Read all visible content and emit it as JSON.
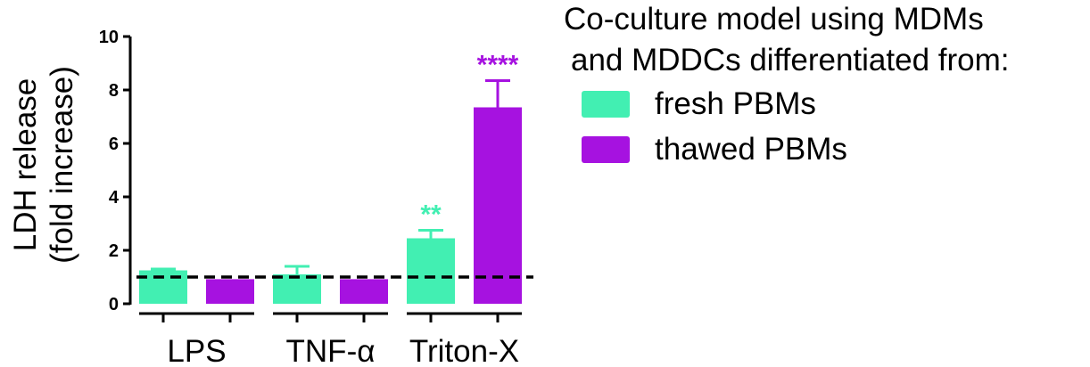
{
  "chart_data": {
    "type": "bar",
    "ylabel_lines": [
      "LDH release",
      "(fold increase)"
    ],
    "categories": [
      "LPS",
      "TNF-α",
      "Triton-X"
    ],
    "ylim": [
      0,
      10
    ],
    "yticks": [
      0,
      2,
      4,
      6,
      8,
      10
    ],
    "reference_line": 1,
    "series": [
      {
        "name": "fresh PBMs",
        "color": "#42EFB2",
        "values": [
          1.25,
          1.1,
          2.45
        ],
        "errors": [
          0.05,
          0.3,
          0.3
        ],
        "annotations": [
          "",
          "",
          "**"
        ]
      },
      {
        "name": "thawed PBMs",
        "color": "#A612E0",
        "values": [
          0.92,
          0.92,
          7.35
        ],
        "errors": [
          0,
          0,
          1.0
        ],
        "annotations": [
          "",
          "",
          "****"
        ]
      }
    ],
    "legend": {
      "title_lines": [
        "Co-culture model using MDMs",
        "and MDDCs differentiated from:"
      ],
      "placement": "right"
    },
    "grid": false
  }
}
